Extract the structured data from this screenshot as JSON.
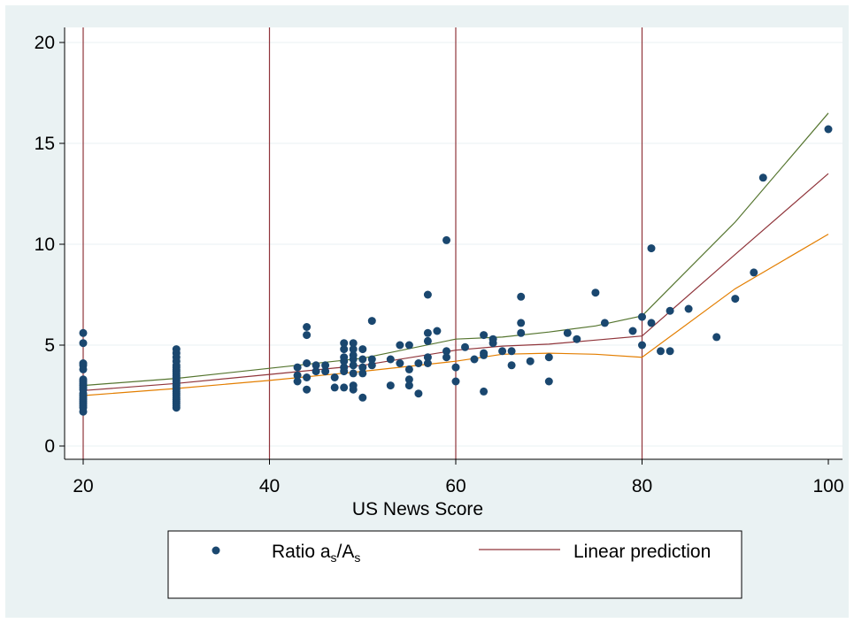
{
  "chart_data": {
    "type": "scatter",
    "xlabel": "US News Score",
    "ylabel": "",
    "xlim": [
      20,
      100
    ],
    "ylim": [
      0,
      20
    ],
    "xticks": [
      20,
      40,
      60,
      80,
      100
    ],
    "yticks": [
      0,
      5,
      10,
      15,
      20
    ],
    "grid": "horizontal",
    "vlines": [
      20,
      40,
      60,
      80
    ],
    "legend_position": "bottom",
    "colors": {
      "background": "#EAF2F3",
      "plot_area": "#FFFFFF",
      "points": "#1A476F",
      "prediction": "#90353B",
      "upper_band": "#55752F",
      "lower_band": "#E37E00",
      "vlines": "#90353B",
      "gridlines": "#EAF2F3"
    },
    "legend": {
      "ratio_prefix": "Ratio a",
      "ratio_sub1": "s",
      "ratio_mid": "/A",
      "ratio_sub2": "s",
      "prediction_label": "Linear prediction"
    },
    "scatter_points": [
      [
        20,
        1.7
      ],
      [
        20,
        1.9
      ],
      [
        20,
        2.0
      ],
      [
        20,
        2.1
      ],
      [
        20,
        2.2
      ],
      [
        20,
        2.3
      ],
      [
        20,
        2.4
      ],
      [
        20,
        2.5
      ],
      [
        20,
        2.6
      ],
      [
        20,
        2.8
      ],
      [
        20,
        2.9
      ],
      [
        20,
        3.0
      ],
      [
        20,
        3.1
      ],
      [
        20,
        3.2
      ],
      [
        20,
        3.3
      ],
      [
        20,
        3.8
      ],
      [
        20,
        4.0
      ],
      [
        20,
        4.1
      ],
      [
        20,
        5.1
      ],
      [
        20,
        5.6
      ],
      [
        30,
        1.9
      ],
      [
        30,
        2.0
      ],
      [
        30,
        2.1
      ],
      [
        30,
        2.2
      ],
      [
        30,
        2.3
      ],
      [
        30,
        2.4
      ],
      [
        30,
        2.5
      ],
      [
        30,
        2.6
      ],
      [
        30,
        2.7
      ],
      [
        30,
        2.8
      ],
      [
        30,
        2.9
      ],
      [
        30,
        3.0
      ],
      [
        30,
        3.1
      ],
      [
        30,
        3.2
      ],
      [
        30,
        3.3
      ],
      [
        30,
        3.4
      ],
      [
        30,
        3.5
      ],
      [
        30,
        3.6
      ],
      [
        30,
        3.7
      ],
      [
        30,
        3.8
      ],
      [
        30,
        3.9
      ],
      [
        30,
        4.0
      ],
      [
        30,
        4.2
      ],
      [
        30,
        4.4
      ],
      [
        30,
        4.6
      ],
      [
        30,
        4.8
      ],
      [
        43,
        3.2
      ],
      [
        43,
        3.5
      ],
      [
        43,
        3.9
      ],
      [
        44,
        2.8
      ],
      [
        44,
        3.4
      ],
      [
        44,
        4.1
      ],
      [
        44,
        5.5
      ],
      [
        44,
        5.9
      ],
      [
        45,
        3.7
      ],
      [
        45,
        4.0
      ],
      [
        46,
        3.7
      ],
      [
        46,
        4.0
      ],
      [
        47,
        2.9
      ],
      [
        47,
        3.4
      ],
      [
        48,
        2.9
      ],
      [
        48,
        3.7
      ],
      [
        48,
        3.9
      ],
      [
        48,
        4.2
      ],
      [
        48,
        4.4
      ],
      [
        48,
        4.8
      ],
      [
        48,
        5.1
      ],
      [
        49,
        2.8
      ],
      [
        49,
        3.0
      ],
      [
        49,
        3.6
      ],
      [
        49,
        4.0
      ],
      [
        49,
        4.3
      ],
      [
        49,
        4.5
      ],
      [
        49,
        4.8
      ],
      [
        49,
        5.1
      ],
      [
        50,
        2.4
      ],
      [
        50,
        3.6
      ],
      [
        50,
        3.9
      ],
      [
        50,
        4.3
      ],
      [
        50,
        4.8
      ],
      [
        51,
        4.0
      ],
      [
        51,
        4.3
      ],
      [
        51,
        6.2
      ],
      [
        53,
        3.0
      ],
      [
        53,
        4.3
      ],
      [
        54,
        4.1
      ],
      [
        54,
        5.0
      ],
      [
        55,
        3.0
      ],
      [
        55,
        3.3
      ],
      [
        55,
        3.8
      ],
      [
        55,
        5.0
      ],
      [
        56,
        2.6
      ],
      [
        56,
        4.1
      ],
      [
        57,
        4.1
      ],
      [
        57,
        4.4
      ],
      [
        57,
        5.2
      ],
      [
        57,
        5.6
      ],
      [
        57,
        7.5
      ],
      [
        58,
        5.7
      ],
      [
        59,
        4.4
      ],
      [
        59,
        4.7
      ],
      [
        59,
        10.2
      ],
      [
        60,
        3.2
      ],
      [
        60,
        3.9
      ],
      [
        61,
        4.9
      ],
      [
        62,
        4.3
      ],
      [
        63,
        2.7
      ],
      [
        63,
        4.5
      ],
      [
        63,
        4.6
      ],
      [
        63,
        5.5
      ],
      [
        64,
        5.1
      ],
      [
        64,
        5.3
      ],
      [
        65,
        4.7
      ],
      [
        66,
        4.0
      ],
      [
        66,
        4.7
      ],
      [
        67,
        5.6
      ],
      [
        67,
        6.1
      ],
      [
        67,
        7.4
      ],
      [
        68,
        4.2
      ],
      [
        70,
        3.2
      ],
      [
        70,
        4.4
      ],
      [
        72,
        5.6
      ],
      [
        73,
        5.3
      ],
      [
        75,
        7.6
      ],
      [
        76,
        6.1
      ],
      [
        79,
        5.7
      ],
      [
        80,
        5.0
      ],
      [
        80,
        6.4
      ],
      [
        81,
        6.1
      ],
      [
        81,
        9.8
      ],
      [
        82,
        4.7
      ],
      [
        83,
        4.7
      ],
      [
        83,
        6.7
      ],
      [
        85,
        6.8
      ],
      [
        88,
        5.4
      ],
      [
        90,
        7.3
      ],
      [
        92,
        8.6
      ],
      [
        93,
        13.3
      ],
      [
        100,
        15.7
      ]
    ],
    "series": [
      {
        "name": "Linear prediction",
        "x": [
          20,
          30,
          40,
          50,
          60,
          65,
          70,
          75,
          80,
          90,
          100
        ],
        "y": [
          2.75,
          3.1,
          3.55,
          4.0,
          4.75,
          4.95,
          5.05,
          5.25,
          5.45,
          9.5,
          13.5
        ]
      },
      {
        "x": [
          20,
          30,
          40,
          50,
          60,
          65,
          70,
          75,
          80,
          90,
          100
        ],
        "y": [
          3.0,
          3.35,
          3.85,
          4.35,
          5.3,
          5.4,
          5.65,
          5.95,
          6.45,
          11.1,
          16.5
        ]
      },
      {
        "x": [
          20,
          30,
          40,
          50,
          60,
          65,
          70,
          75,
          80,
          90,
          100
        ],
        "y": [
          2.5,
          2.85,
          3.25,
          3.7,
          4.2,
          4.55,
          4.6,
          4.55,
          4.4,
          7.8,
          10.5
        ]
      }
    ]
  }
}
